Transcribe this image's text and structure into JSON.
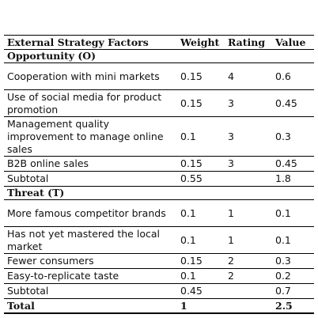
{
  "table": {
    "headers": [
      "External Strategy Factors",
      "Weight",
      "Rating",
      "Value"
    ],
    "opportunity": {
      "title": "Opportunity (O)",
      "rows": [
        {
          "factor": "Cooperation with mini markets",
          "weight": "0.15",
          "rating": "4",
          "value": "0.6"
        },
        {
          "factor": "Use of social media for product promotion",
          "weight": "0.15",
          "rating": "3",
          "value": "0.45"
        },
        {
          "factor": "Management quality improvement to manage online sales",
          "weight": "0.1",
          "rating": "3",
          "value": "0.3"
        },
        {
          "factor": "B2B online sales",
          "weight": "0.15",
          "rating": "3",
          "value": "0.45"
        }
      ],
      "subtotal": {
        "label": "Subtotal",
        "weight": "0.55",
        "value": "1.8"
      }
    },
    "threat": {
      "title": "Threat (T)",
      "rows": [
        {
          "factor": "More famous competitor brands",
          "weight": "0.1",
          "rating": "1",
          "value": "0.1"
        },
        {
          "factor": "Has not yet mastered the local market",
          "weight": "0.1",
          "rating": "1",
          "value": "0.1"
        },
        {
          "factor": "Fewer consumers",
          "weight": "0.15",
          "rating": "2",
          "value": "0.3"
        },
        {
          "factor": "Easy-to-replicate taste",
          "weight": "0.1",
          "rating": "2",
          "value": "0.2"
        }
      ],
      "subtotal": {
        "label": "Subtotal",
        "weight": "0.45",
        "value": "0.7"
      }
    },
    "total": {
      "label": "Total",
      "weight": "1",
      "value": "2.5"
    }
  }
}
